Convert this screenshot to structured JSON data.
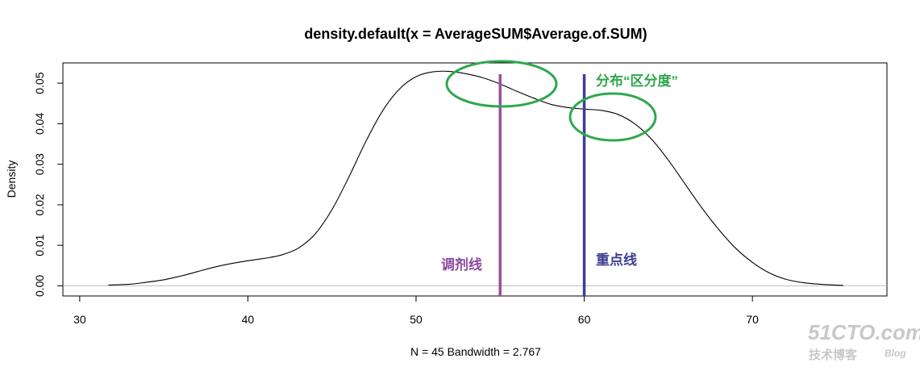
{
  "chart_data": {
    "type": "line",
    "title": "density.default(x = AverageSUM$Average.of.SUM)",
    "xlabel": "N = 45   Bandwidth = 2.767",
    "ylabel": "Density",
    "xlim": [
      29,
      78
    ],
    "ylim": [
      -0.0025,
      0.055
    ],
    "xticks": [
      30,
      40,
      50,
      60,
      70
    ],
    "yticks": [
      0.0,
      0.01,
      0.02,
      0.03,
      0.04,
      0.05
    ],
    "ytick_labels": [
      "0.00",
      "0.01",
      "0.02",
      "0.03",
      "0.04",
      "0.05"
    ],
    "baseline": 0,
    "series": [
      {
        "x": [
          31.7,
          33,
          34,
          35,
          36,
          37,
          38,
          39,
          40,
          41,
          42,
          43,
          44,
          45,
          46,
          47,
          48,
          49,
          50,
          51,
          52,
          53,
          54,
          55,
          56,
          57,
          58,
          59,
          60,
          61,
          62,
          63,
          64,
          65,
          66,
          67,
          68,
          69,
          70,
          71,
          72,
          73,
          74,
          75.4
        ],
        "y": [
          0.0002,
          0.0004,
          0.0009,
          0.0015,
          0.0024,
          0.0035,
          0.0046,
          0.0055,
          0.0062,
          0.0068,
          0.0076,
          0.0093,
          0.0128,
          0.0188,
          0.0268,
          0.0355,
          0.0431,
          0.0485,
          0.0516,
          0.0528,
          0.0529,
          0.0523,
          0.0513,
          0.0498,
          0.048,
          0.0463,
          0.0448,
          0.044,
          0.0436,
          0.0433,
          0.0423,
          0.04,
          0.0362,
          0.031,
          0.0251,
          0.0192,
          0.0139,
          0.0093,
          0.0058,
          0.0032,
          0.0016,
          0.0008,
          0.0004,
          0.0001
        ]
      }
    ],
    "vlines": [
      {
        "x": 55,
        "color": "#9b4ea0",
        "label": "调剂线",
        "label_color": "#8d4a9e"
      },
      {
        "x": 60,
        "color": "#3d3f98",
        "label": "重点线",
        "label_color": "#3d3f8f"
      }
    ],
    "circles_color": "#2ea84c",
    "circles_note": "分布“区分度”"
  },
  "watermark": {
    "main": "51CTO.com",
    "sub": "技术博客",
    "blog": "Blog"
  }
}
